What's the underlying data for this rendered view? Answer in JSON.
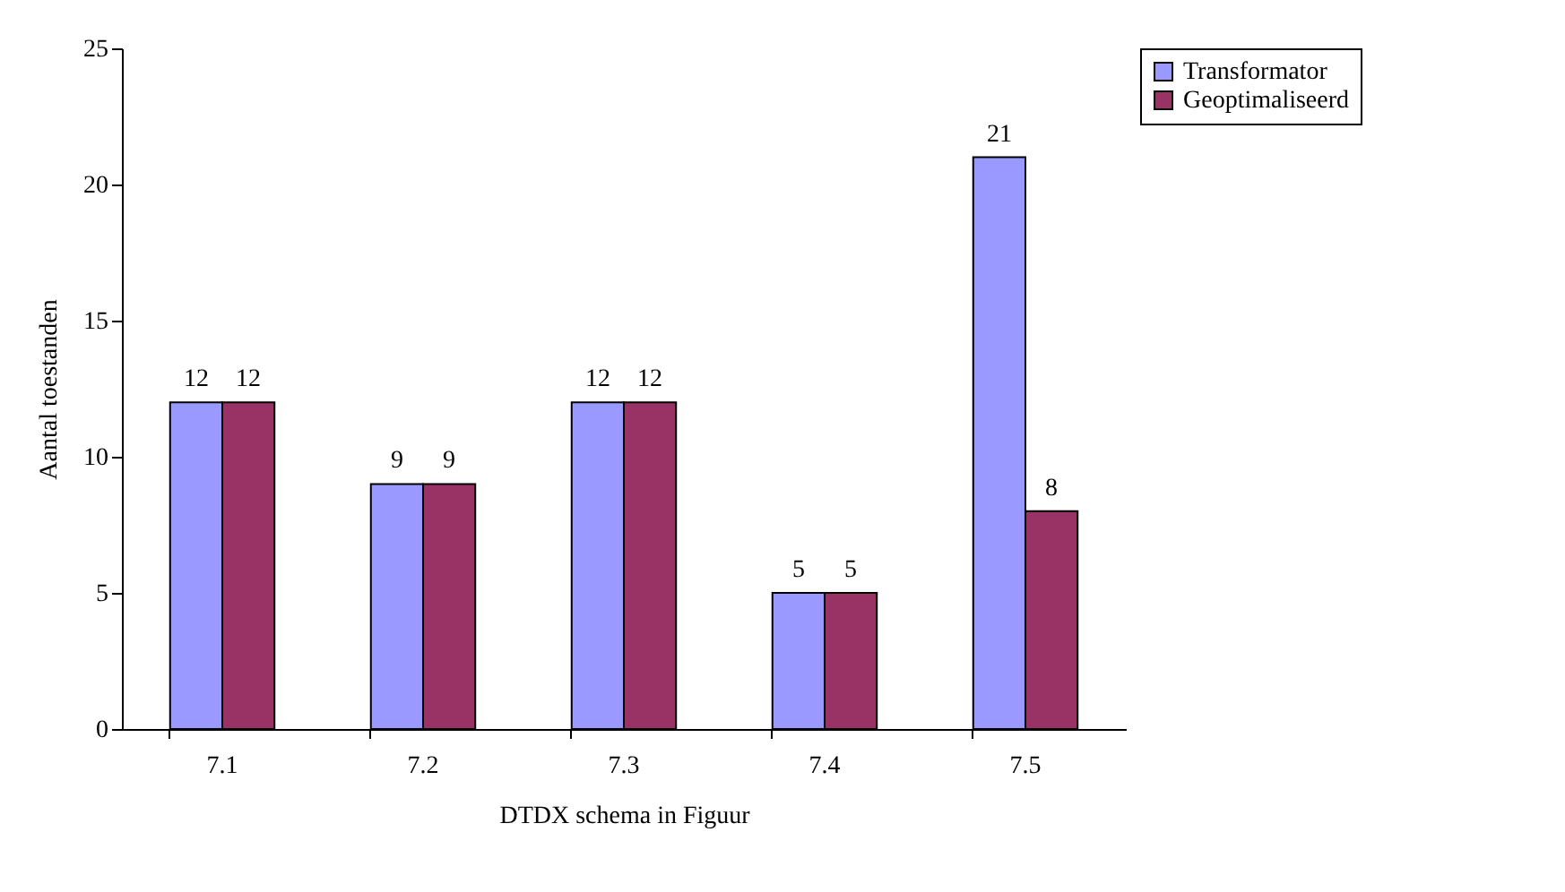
{
  "chart_data": {
    "type": "bar",
    "xlabel": "DTDX schema in Figuur",
    "ylabel": "Aantal toestanden",
    "categories": [
      "7.1",
      "7.2",
      "7.3",
      "7.4",
      "7.5"
    ],
    "series": [
      {
        "name": "Transformator",
        "color": "#9999ff",
        "values": [
          12,
          9,
          12,
          5,
          21
        ]
      },
      {
        "name": "Geoptimaliseerd",
        "color": "#993366",
        "values": [
          12,
          9,
          12,
          5,
          8
        ]
      }
    ],
    "ylim": [
      0,
      25
    ],
    "yticks": [
      0,
      5,
      10,
      15,
      20,
      25
    ],
    "data_labels": true,
    "legend": "right"
  }
}
